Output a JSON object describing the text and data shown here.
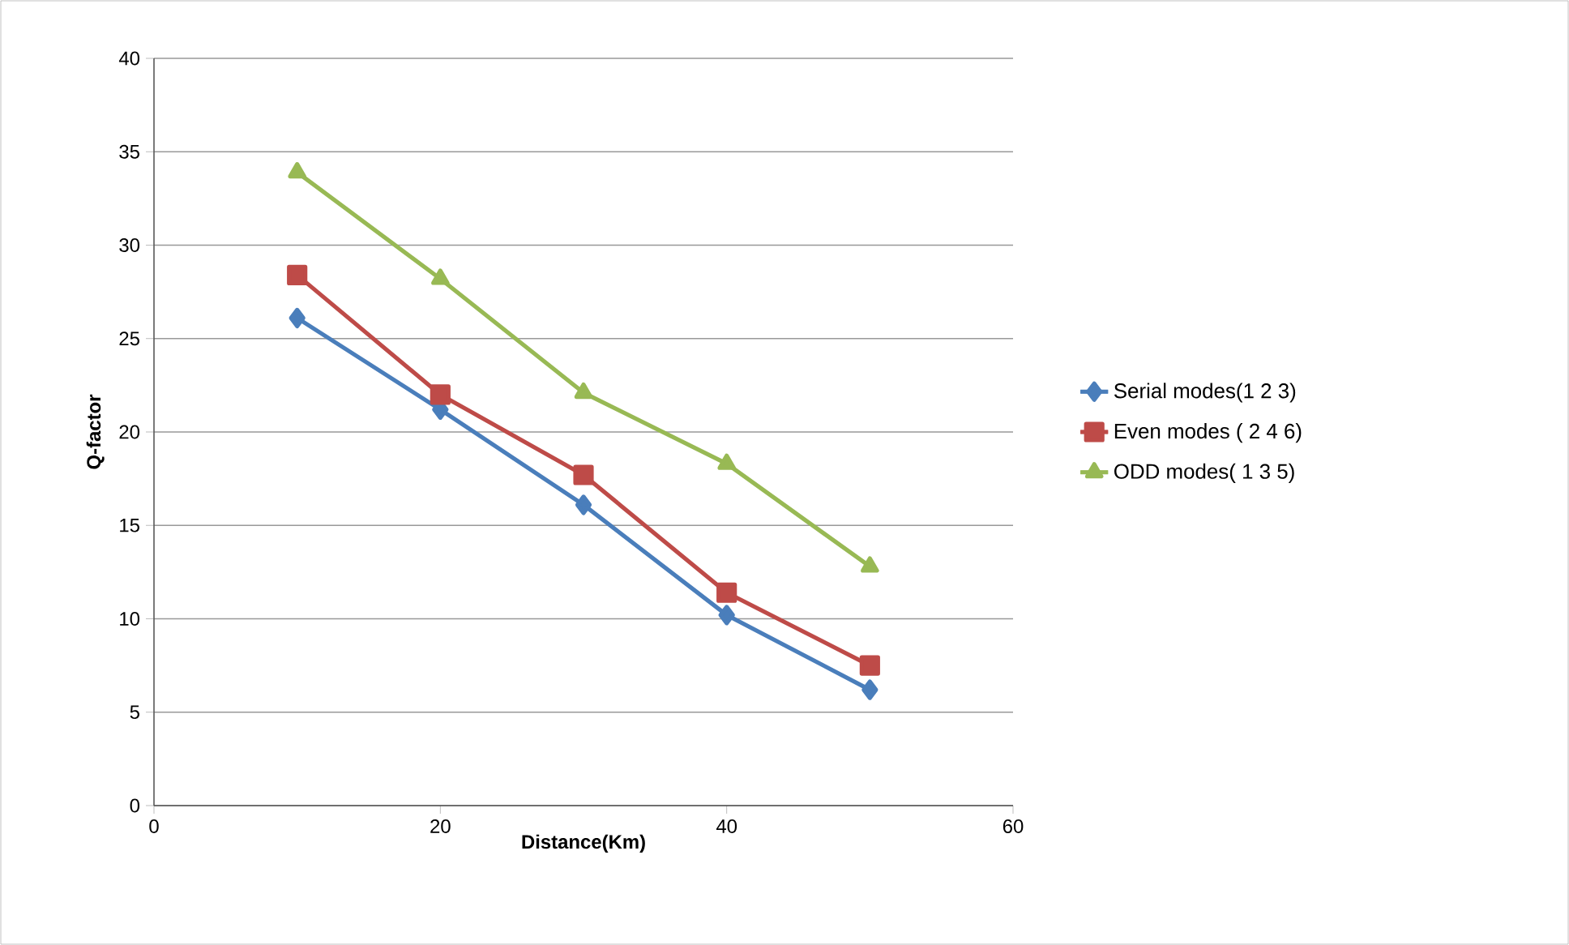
{
  "chart_data": {
    "type": "line",
    "xlabel": "Distance(Km)",
    "ylabel": "Q-factor",
    "x": [
      10,
      20,
      30,
      40,
      50
    ],
    "series": [
      {
        "name": "Serial modes(1 2 3)",
        "color": "#4a7ebb",
        "marker": "diamond",
        "values": [
          26.1,
          21.2,
          16.1,
          10.2,
          6.2
        ]
      },
      {
        "name": "Even modes ( 2 4 6)",
        "color": "#be4b48",
        "marker": "square",
        "values": [
          28.4,
          22.0,
          17.7,
          11.4,
          7.5
        ]
      },
      {
        "name": "ODD modes( 1 3 5)",
        "color": "#98b954",
        "marker": "triangle",
        "values": [
          33.9,
          28.2,
          22.1,
          18.3,
          12.8
        ]
      }
    ],
    "xlim": [
      0,
      60
    ],
    "xticks": [
      0,
      20,
      40,
      60
    ],
    "ylim": [
      0,
      40
    ],
    "yticks": [
      0,
      5,
      10,
      15,
      20,
      25,
      30,
      35,
      40
    ],
    "grid": "y",
    "legend": "right",
    "line_style": "solid"
  }
}
